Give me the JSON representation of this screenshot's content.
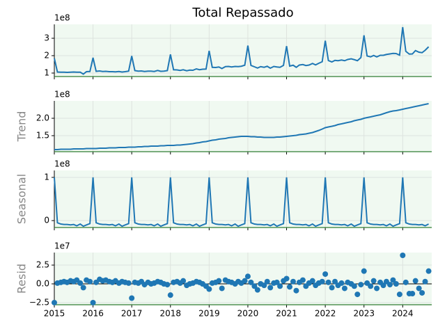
{
  "chart_data": [
    {
      "type": "line",
      "title": "Total Repassado",
      "offset_label": "1e8",
      "color": "#1f77b4",
      "x": [
        2015,
        2015.08,
        2015.17,
        2015.25,
        2015.33,
        2015.42,
        2015.5,
        2015.58,
        2015.67,
        2015.75,
        2015.83,
        2015.92,
        2016,
        2016.08,
        2016.17,
        2016.25,
        2016.33,
        2016.42,
        2016.5,
        2016.58,
        2016.67,
        2016.75,
        2016.83,
        2016.92,
        2017,
        2017.08,
        2017.17,
        2017.25,
        2017.33,
        2017.42,
        2017.5,
        2017.58,
        2017.67,
        2017.75,
        2017.83,
        2017.92,
        2018,
        2018.08,
        2018.17,
        2018.25,
        2018.33,
        2018.42,
        2018.5,
        2018.58,
        2018.67,
        2018.75,
        2018.83,
        2018.92,
        2019,
        2019.08,
        2019.17,
        2019.25,
        2019.33,
        2019.42,
        2019.5,
        2019.58,
        2019.67,
        2019.75,
        2019.83,
        2019.92,
        2020,
        2020.08,
        2020.17,
        2020.25,
        2020.33,
        2020.42,
        2020.5,
        2020.58,
        2020.67,
        2020.75,
        2020.83,
        2020.92,
        2021,
        2021.08,
        2021.17,
        2021.25,
        2021.33,
        2021.42,
        2021.5,
        2021.58,
        2021.67,
        2021.75,
        2021.83,
        2021.92,
        2022,
        2022.08,
        2022.17,
        2022.25,
        2022.33,
        2022.42,
        2022.5,
        2022.58,
        2022.67,
        2022.75,
        2022.83,
        2022.92,
        2023,
        2023.08,
        2023.17,
        2023.25,
        2023.33,
        2023.42,
        2023.5,
        2023.58,
        2023.67,
        2023.75,
        2023.83,
        2023.92,
        2024,
        2024.08,
        2024.17,
        2024.25,
        2024.33,
        2024.42,
        2024.5,
        2024.58,
        2024.67
      ],
      "values": [
        1.85,
        1.06,
        1.05,
        1.05,
        1.04,
        1.05,
        1.06,
        1.05,
        1.05,
        0.94,
        1.08,
        1.09,
        1.88,
        1.1,
        1.12,
        1.09,
        1.1,
        1.08,
        1.08,
        1.07,
        1.09,
        1.06,
        1.08,
        1.11,
        1.98,
        1.14,
        1.11,
        1.12,
        1.09,
        1.11,
        1.11,
        1.09,
        1.15,
        1.1,
        1.11,
        1.14,
        2.07,
        1.19,
        1.18,
        1.15,
        1.19,
        1.13,
        1.17,
        1.16,
        1.24,
        1.19,
        1.22,
        1.23,
        2.28,
        1.33,
        1.32,
        1.35,
        1.26,
        1.37,
        1.38,
        1.35,
        1.38,
        1.37,
        1.39,
        1.45,
        2.58,
        1.44,
        1.36,
        1.29,
        1.37,
        1.33,
        1.39,
        1.28,
        1.38,
        1.35,
        1.33,
        1.44,
        2.55,
        1.4,
        1.45,
        1.33,
        1.46,
        1.49,
        1.43,
        1.46,
        1.55,
        1.47,
        1.56,
        1.65,
        2.86,
        1.72,
        1.64,
        1.73,
        1.71,
        1.75,
        1.71,
        1.78,
        1.82,
        1.77,
        1.71,
        1.89,
        3.17,
        1.98,
        1.93,
        2.01,
        1.93,
        2.02,
        2.02,
        2.07,
        2.1,
        2.13,
        2.12,
        2.03,
        3.64,
        2.25,
        2.09,
        2.1,
        2.29,
        2.2,
        2.17,
        2.31,
        2.51
      ],
      "ylim": [
        0.8,
        3.8
      ],
      "yticks": [
        1,
        2,
        3
      ]
    },
    {
      "type": "line",
      "ylabel": "Trend",
      "offset_label": "1e8",
      "color": "#1f77b4",
      "x": [
        2015,
        2015.08,
        2015.17,
        2015.25,
        2015.33,
        2015.42,
        2015.5,
        2015.58,
        2015.67,
        2015.75,
        2015.83,
        2015.92,
        2016,
        2016.08,
        2016.17,
        2016.25,
        2016.33,
        2016.42,
        2016.5,
        2016.58,
        2016.67,
        2016.75,
        2016.83,
        2016.92,
        2017,
        2017.08,
        2017.17,
        2017.25,
        2017.33,
        2017.42,
        2017.5,
        2017.58,
        2017.67,
        2017.75,
        2017.83,
        2017.92,
        2018,
        2018.08,
        2018.17,
        2018.25,
        2018.33,
        2018.42,
        2018.5,
        2018.58,
        2018.67,
        2018.75,
        2018.83,
        2018.92,
        2019,
        2019.08,
        2019.17,
        2019.25,
        2019.33,
        2019.42,
        2019.5,
        2019.58,
        2019.67,
        2019.75,
        2019.83,
        2019.92,
        2020,
        2020.08,
        2020.17,
        2020.25,
        2020.33,
        2020.42,
        2020.5,
        2020.58,
        2020.67,
        2020.75,
        2020.83,
        2020.92,
        2021,
        2021.08,
        2021.17,
        2021.25,
        2021.33,
        2021.42,
        2021.5,
        2021.58,
        2021.67,
        2021.75,
        2021.83,
        2021.92,
        2022,
        2022.08,
        2022.17,
        2022.25,
        2022.33,
        2022.42,
        2022.5,
        2022.58,
        2022.67,
        2022.75,
        2022.83,
        2022.92,
        2023,
        2023.08,
        2023.17,
        2023.25,
        2023.33,
        2023.42,
        2023.5,
        2023.58,
        2023.67,
        2023.75,
        2023.83,
        2023.92,
        2024,
        2024.08,
        2024.17,
        2024.25,
        2024.33,
        2024.42,
        2024.5,
        2024.58,
        2024.67
      ],
      "values": [
        1.1,
        1.1,
        1.11,
        1.11,
        1.11,
        1.11,
        1.12,
        1.12,
        1.12,
        1.12,
        1.13,
        1.13,
        1.13,
        1.13,
        1.14,
        1.14,
        1.14,
        1.15,
        1.15,
        1.15,
        1.16,
        1.16,
        1.16,
        1.17,
        1.17,
        1.17,
        1.18,
        1.18,
        1.19,
        1.19,
        1.2,
        1.2,
        1.2,
        1.21,
        1.21,
        1.22,
        1.22,
        1.22,
        1.23,
        1.23,
        1.24,
        1.25,
        1.26,
        1.27,
        1.29,
        1.3,
        1.32,
        1.33,
        1.35,
        1.37,
        1.38,
        1.4,
        1.41,
        1.42,
        1.44,
        1.45,
        1.46,
        1.47,
        1.48,
        1.48,
        1.48,
        1.47,
        1.47,
        1.46,
        1.46,
        1.45,
        1.45,
        1.45,
        1.45,
        1.46,
        1.46,
        1.47,
        1.48,
        1.49,
        1.5,
        1.51,
        1.53,
        1.54,
        1.55,
        1.57,
        1.59,
        1.62,
        1.65,
        1.69,
        1.73,
        1.75,
        1.77,
        1.79,
        1.82,
        1.84,
        1.86,
        1.88,
        1.9,
        1.93,
        1.95,
        1.97,
        2.0,
        2.02,
        2.04,
        2.06,
        2.08,
        2.1,
        2.13,
        2.16,
        2.19,
        2.21,
        2.22,
        2.24,
        2.26,
        2.28,
        2.3,
        2.32,
        2.34,
        2.36,
        2.38,
        2.4,
        2.42
      ],
      "ylim": [
        1.04,
        2.5
      ],
      "yticks": [
        1.5,
        {
          "value": 2,
          "label": "2.0"
        }
      ]
    },
    {
      "type": "line",
      "ylabel": "Seasonal",
      "offset_label": "1e8",
      "color": "#1f77b4",
      "x": [
        2015,
        2015.08,
        2015.17,
        2015.25,
        2015.33,
        2015.42,
        2015.5,
        2015.58,
        2015.67,
        2015.75,
        2015.83,
        2015.92,
        2016,
        2016.08,
        2016.17,
        2016.25,
        2016.33,
        2016.42,
        2016.5,
        2016.58,
        2016.67,
        2016.75,
        2016.83,
        2016.92,
        2017,
        2017.08,
        2017.17,
        2017.25,
        2017.33,
        2017.42,
        2017.5,
        2017.58,
        2017.67,
        2017.75,
        2017.83,
        2017.92,
        2018,
        2018.08,
        2018.17,
        2018.25,
        2018.33,
        2018.42,
        2018.5,
        2018.58,
        2018.67,
        2018.75,
        2018.83,
        2018.92,
        2019,
        2019.08,
        2019.17,
        2019.25,
        2019.33,
        2019.42,
        2019.5,
        2019.58,
        2019.67,
        2019.75,
        2019.83,
        2019.92,
        2020,
        2020.08,
        2020.17,
        2020.25,
        2020.33,
        2020.42,
        2020.5,
        2020.58,
        2020.67,
        2020.75,
        2020.83,
        2020.92,
        2021,
        2021.08,
        2021.17,
        2021.25,
        2021.33,
        2021.42,
        2021.5,
        2021.58,
        2021.67,
        2021.75,
        2021.83,
        2021.92,
        2022,
        2022.08,
        2022.17,
        2022.25,
        2022.33,
        2022.42,
        2022.5,
        2022.58,
        2022.67,
        2022.75,
        2022.83,
        2022.92,
        2023,
        2023.08,
        2023.17,
        2023.25,
        2023.33,
        2023.42,
        2023.5,
        2023.58,
        2023.67,
        2023.75,
        2023.83,
        2023.92,
        2024,
        2024.08,
        2024.17,
        2024.25,
        2024.33,
        2024.42,
        2024.5,
        2024.58,
        2024.67
      ],
      "values": [
        1.0,
        -0.05,
        -0.08,
        -0.09,
        -0.09,
        -0.1,
        -0.09,
        -0.12,
        -0.08,
        -0.13,
        -0.1,
        -0.07,
        1.0,
        -0.05,
        -0.08,
        -0.09,
        -0.09,
        -0.1,
        -0.09,
        -0.12,
        -0.08,
        -0.13,
        -0.1,
        -0.07,
        1.0,
        -0.05,
        -0.08,
        -0.09,
        -0.09,
        -0.1,
        -0.09,
        -0.12,
        -0.08,
        -0.13,
        -0.1,
        -0.07,
        1.0,
        -0.05,
        -0.08,
        -0.09,
        -0.09,
        -0.1,
        -0.09,
        -0.12,
        -0.08,
        -0.13,
        -0.1,
        -0.07,
        1.0,
        -0.05,
        -0.08,
        -0.09,
        -0.09,
        -0.1,
        -0.09,
        -0.12,
        -0.08,
        -0.13,
        -0.1,
        -0.07,
        1.0,
        -0.05,
        -0.08,
        -0.09,
        -0.09,
        -0.1,
        -0.09,
        -0.12,
        -0.08,
        -0.13,
        -0.1,
        -0.07,
        1.0,
        -0.05,
        -0.08,
        -0.09,
        -0.09,
        -0.1,
        -0.09,
        -0.12,
        -0.08,
        -0.13,
        -0.1,
        -0.07,
        1.0,
        -0.05,
        -0.08,
        -0.09,
        -0.09,
        -0.1,
        -0.09,
        -0.12,
        -0.08,
        -0.13,
        -0.1,
        -0.07,
        1.0,
        -0.05,
        -0.08,
        -0.09,
        -0.09,
        -0.1,
        -0.09,
        -0.12,
        -0.08,
        -0.13,
        -0.1,
        -0.07,
        1.0,
        -0.05,
        -0.08,
        -0.09,
        -0.09,
        -0.1,
        -0.09,
        -0.12,
        -0.08
      ],
      "ylim": [
        -0.16,
        1.16
      ],
      "yticks": [
        0,
        1
      ]
    },
    {
      "type": "scatter",
      "ylabel": "Resid",
      "offset_label": "1e7",
      "color": "#1f77b4",
      "x": [
        2015,
        2015.08,
        2015.17,
        2015.25,
        2015.33,
        2015.42,
        2015.5,
        2015.58,
        2015.67,
        2015.75,
        2015.83,
        2015.92,
        2016,
        2016.08,
        2016.17,
        2016.25,
        2016.33,
        2016.42,
        2016.5,
        2016.58,
        2016.67,
        2016.75,
        2016.83,
        2016.92,
        2017,
        2017.08,
        2017.17,
        2017.25,
        2017.33,
        2017.42,
        2017.5,
        2017.58,
        2017.67,
        2017.75,
        2017.83,
        2017.92,
        2018,
        2018.08,
        2018.17,
        2018.25,
        2018.33,
        2018.42,
        2018.5,
        2018.58,
        2018.67,
        2018.75,
        2018.83,
        2018.92,
        2019,
        2019.08,
        2019.17,
        2019.25,
        2019.33,
        2019.42,
        2019.5,
        2019.58,
        2019.67,
        2019.75,
        2019.83,
        2019.92,
        2020,
        2020.08,
        2020.17,
        2020.25,
        2020.33,
        2020.42,
        2020.5,
        2020.58,
        2020.67,
        2020.75,
        2020.83,
        2020.92,
        2021,
        2021.08,
        2021.17,
        2021.25,
        2021.33,
        2021.42,
        2021.5,
        2021.58,
        2021.67,
        2021.75,
        2021.83,
        2021.92,
        2022,
        2022.08,
        2022.17,
        2022.25,
        2022.33,
        2022.42,
        2022.5,
        2022.58,
        2022.67,
        2022.75,
        2022.83,
        2022.92,
        2023,
        2023.08,
        2023.17,
        2023.25,
        2023.33,
        2023.42,
        2023.5,
        2023.58,
        2023.67,
        2023.75,
        2023.83,
        2023.92,
        2024,
        2024.08,
        2024.17,
        2024.25,
        2024.33,
        2024.42,
        2024.5,
        2024.58,
        2024.67
      ],
      "values": [
        -2.5,
        0.1,
        0.2,
        0.3,
        0.2,
        0.4,
        0.3,
        0.5,
        0.1,
        -0.5,
        0.5,
        0.3,
        -2.5,
        0.2,
        0.6,
        0.4,
        0.5,
        0.3,
        0.2,
        0.4,
        0.1,
        0.3,
        0.2,
        0.1,
        -1.9,
        0.2,
        0.1,
        0.3,
        -0.1,
        0.2,
        0.0,
        0.1,
        0.3,
        0.2,
        0.0,
        -0.1,
        -1.5,
        0.2,
        0.3,
        0.1,
        0.4,
        -0.2,
        0.0,
        0.1,
        0.3,
        0.2,
        0.0,
        -0.3,
        -0.7,
        0.1,
        0.2,
        0.4,
        -0.6,
        0.5,
        0.3,
        0.2,
        0.0,
        0.3,
        0.1,
        0.4,
        1.0,
        0.2,
        -0.3,
        -0.8,
        0.0,
        -0.2,
        0.3,
        -0.5,
        0.1,
        0.2,
        -0.3,
        0.4,
        0.7,
        -0.4,
        0.3,
        -0.9,
        0.2,
        0.5,
        -0.3,
        0.1,
        0.4,
        -0.2,
        0.1,
        0.3,
        1.3,
        0.2,
        -0.5,
        0.3,
        -0.2,
        0.1,
        -0.6,
        0.2,
        0.0,
        -0.3,
        -1.4,
        -0.1,
        1.7,
        0.1,
        -0.3,
        0.4,
        -0.6,
        0.2,
        -0.2,
        0.3,
        -0.1,
        0.5,
        0.0,
        -1.4,
        3.8,
        0.2,
        -1.3,
        -1.3,
        0.4,
        -0.6,
        -1.2,
        0.3,
        1.7
      ],
      "ylim": [
        -2.78,
        4.17
      ],
      "yticks": [
        {
          "value": -2.5,
          "label": "−2.5"
        },
        {
          "value": 0,
          "label": "0.0"
        },
        2.5
      ],
      "xlim": [
        2015,
        2024.75
      ],
      "xticks": [
        2015,
        2016,
        2017,
        2018,
        2019,
        2020,
        2021,
        2022,
        2023,
        2024
      ]
    }
  ]
}
